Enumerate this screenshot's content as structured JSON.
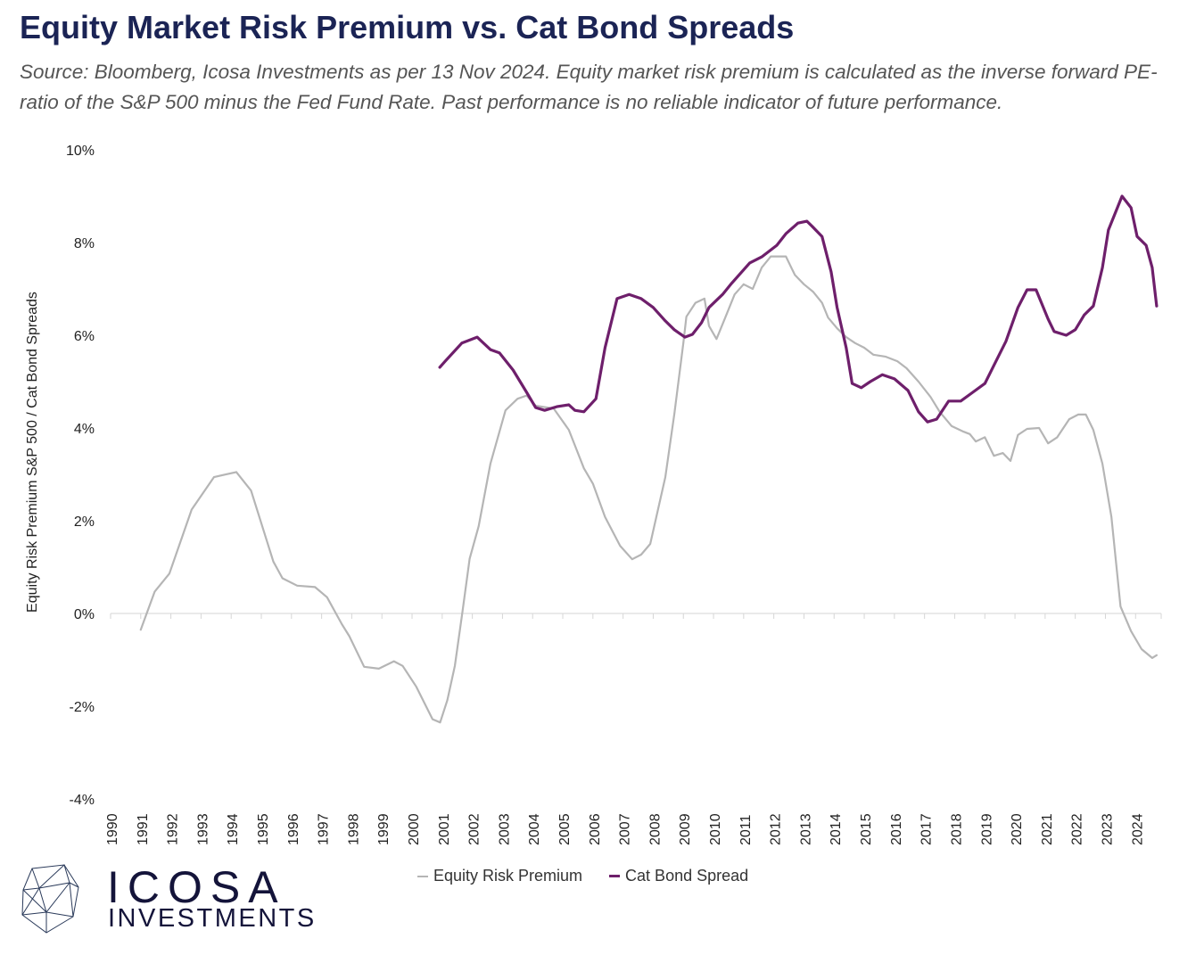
{
  "title": "Equity Market Risk Premium vs. Cat Bond Spreads",
  "subtitle": "Source: Bloomberg, Icosa Investments as per 13 Nov 2024. Equity market risk premium is calculated as the inverse forward PE-ratio of the S&P 500 minus the Fed Fund Rate. Past performance is no reliable indicator of future performance.",
  "logo": {
    "name": "ICOSA",
    "sub": "INVESTMENTS"
  },
  "chart_data": {
    "type": "line",
    "ylabel": "Equity Risk Premium S&P 500 / Cat Bond Spreads",
    "xlabel": "",
    "ylim": [
      -4,
      10
    ],
    "xlim": [
      1990,
      2024.85
    ],
    "yticks": [
      "-4%",
      "-2%",
      "0%",
      "2%",
      "4%",
      "6%",
      "8%",
      "10%"
    ],
    "ytick_values": [
      -4,
      -2,
      0,
      2,
      4,
      6,
      8,
      10
    ],
    "xticks": [
      "1990",
      "1991",
      "1992",
      "1993",
      "1994",
      "1995",
      "1996",
      "1997",
      "1998",
      "1999",
      "2000",
      "2001",
      "2002",
      "2003",
      "2004",
      "2005",
      "2006",
      "2007",
      "2008",
      "2009",
      "2010",
      "2011",
      "2012",
      "2013",
      "2014",
      "2015",
      "2016",
      "2017",
      "2018",
      "2019",
      "2020",
      "2021",
      "2022",
      "2023",
      "2024"
    ],
    "grid": false,
    "legend_position": "bottom",
    "colors": {
      "equity": "#b5b5b5",
      "cat": "#6e1f6b",
      "title": "#1b2455"
    },
    "series": [
      {
        "name": "Equity Risk Premium",
        "points": [
          [
            1991.0,
            -0.35
          ],
          [
            1991.46,
            0.47
          ],
          [
            1991.95,
            0.86
          ],
          [
            1992.69,
            2.24
          ],
          [
            1993.43,
            2.94
          ],
          [
            1994.17,
            3.05
          ],
          [
            1994.66,
            2.65
          ],
          [
            1995.4,
            1.12
          ],
          [
            1995.7,
            0.76
          ],
          [
            1996.19,
            0.6
          ],
          [
            1996.78,
            0.57
          ],
          [
            1997.18,
            0.35
          ],
          [
            1997.67,
            -0.23
          ],
          [
            1997.92,
            -0.49
          ],
          [
            1998.41,
            -1.15
          ],
          [
            1998.9,
            -1.19
          ],
          [
            1999.4,
            -1.03
          ],
          [
            1999.69,
            -1.13
          ],
          [
            2000.14,
            -1.58
          ],
          [
            2000.68,
            -2.28
          ],
          [
            2000.93,
            -2.35
          ],
          [
            2001.17,
            -1.87
          ],
          [
            2001.42,
            -1.13
          ],
          [
            2001.67,
            0.03
          ],
          [
            2001.91,
            1.18
          ],
          [
            2002.21,
            1.88
          ],
          [
            2002.6,
            3.23
          ],
          [
            2003.1,
            4.38
          ],
          [
            2003.5,
            4.63
          ],
          [
            2003.8,
            4.7
          ],
          [
            2004.1,
            4.48
          ],
          [
            2004.7,
            4.42
          ],
          [
            2005.2,
            3.96
          ],
          [
            2005.7,
            3.13
          ],
          [
            2006.0,
            2.8
          ],
          [
            2006.4,
            2.08
          ],
          [
            2006.9,
            1.46
          ],
          [
            2007.3,
            1.17
          ],
          [
            2007.6,
            1.27
          ],
          [
            2007.9,
            1.5
          ],
          [
            2008.4,
            2.94
          ],
          [
            2008.7,
            4.3
          ],
          [
            2009.0,
            5.83
          ],
          [
            2009.1,
            6.4
          ],
          [
            2009.4,
            6.7
          ],
          [
            2009.7,
            6.79
          ],
          [
            2009.85,
            6.2
          ],
          [
            2010.1,
            5.92
          ],
          [
            2010.4,
            6.4
          ],
          [
            2010.7,
            6.88
          ],
          [
            2011.0,
            7.1
          ],
          [
            2011.3,
            7.0
          ],
          [
            2011.6,
            7.46
          ],
          [
            2011.9,
            7.7
          ],
          [
            2012.4,
            7.7
          ],
          [
            2012.7,
            7.3
          ],
          [
            2013.0,
            7.1
          ],
          [
            2013.3,
            6.94
          ],
          [
            2013.6,
            6.7
          ],
          [
            2013.8,
            6.38
          ],
          [
            2014.1,
            6.15
          ],
          [
            2014.4,
            5.96
          ],
          [
            2014.7,
            5.83
          ],
          [
            2015.0,
            5.73
          ],
          [
            2015.3,
            5.58
          ],
          [
            2015.7,
            5.54
          ],
          [
            2016.1,
            5.44
          ],
          [
            2016.4,
            5.29
          ],
          [
            2016.8,
            5.0
          ],
          [
            2017.2,
            4.67
          ],
          [
            2017.5,
            4.35
          ],
          [
            2017.9,
            4.04
          ],
          [
            2018.3,
            3.92
          ],
          [
            2018.5,
            3.87
          ],
          [
            2018.7,
            3.71
          ],
          [
            2019.0,
            3.8
          ],
          [
            2019.3,
            3.4
          ],
          [
            2019.6,
            3.46
          ],
          [
            2019.85,
            3.29
          ],
          [
            2020.1,
            3.85
          ],
          [
            2020.4,
            3.98
          ],
          [
            2020.8,
            4.0
          ],
          [
            2021.1,
            3.67
          ],
          [
            2021.4,
            3.8
          ],
          [
            2021.8,
            4.19
          ],
          [
            2022.1,
            4.29
          ],
          [
            2022.35,
            4.29
          ],
          [
            2022.6,
            3.96
          ],
          [
            2022.9,
            3.23
          ],
          [
            2023.2,
            2.08
          ],
          [
            2023.5,
            0.15
          ],
          [
            2023.85,
            -0.38
          ],
          [
            2024.2,
            -0.77
          ],
          [
            2024.55,
            -0.96
          ],
          [
            2024.7,
            -0.9
          ]
        ]
      },
      {
        "name": "Cat Bond Spread",
        "points": [
          [
            2000.92,
            5.31
          ],
          [
            2001.1,
            5.44
          ],
          [
            2001.65,
            5.83
          ],
          [
            2002.16,
            5.96
          ],
          [
            2002.6,
            5.69
          ],
          [
            2002.9,
            5.62
          ],
          [
            2003.35,
            5.25
          ],
          [
            2003.8,
            4.77
          ],
          [
            2004.1,
            4.44
          ],
          [
            2004.4,
            4.38
          ],
          [
            2004.8,
            4.46
          ],
          [
            2005.2,
            4.5
          ],
          [
            2005.4,
            4.38
          ],
          [
            2005.7,
            4.35
          ],
          [
            2006.1,
            4.63
          ],
          [
            2006.4,
            5.73
          ],
          [
            2006.8,
            6.79
          ],
          [
            2007.2,
            6.88
          ],
          [
            2007.6,
            6.79
          ],
          [
            2008.0,
            6.6
          ],
          [
            2008.4,
            6.31
          ],
          [
            2008.7,
            6.12
          ],
          [
            2009.05,
            5.96
          ],
          [
            2009.3,
            6.02
          ],
          [
            2009.6,
            6.27
          ],
          [
            2009.85,
            6.6
          ],
          [
            2010.3,
            6.88
          ],
          [
            2010.6,
            7.12
          ],
          [
            2011.2,
            7.56
          ],
          [
            2011.6,
            7.69
          ],
          [
            2012.1,
            7.94
          ],
          [
            2012.4,
            8.19
          ],
          [
            2012.8,
            8.42
          ],
          [
            2013.1,
            8.46
          ],
          [
            2013.3,
            8.33
          ],
          [
            2013.6,
            8.13
          ],
          [
            2013.9,
            7.37
          ],
          [
            2014.1,
            6.6
          ],
          [
            2014.4,
            5.73
          ],
          [
            2014.6,
            4.96
          ],
          [
            2014.9,
            4.87
          ],
          [
            2015.2,
            5.0
          ],
          [
            2015.6,
            5.15
          ],
          [
            2016.0,
            5.06
          ],
          [
            2016.45,
            4.81
          ],
          [
            2016.8,
            4.35
          ],
          [
            2017.1,
            4.13
          ],
          [
            2017.4,
            4.19
          ],
          [
            2017.8,
            4.58
          ],
          [
            2018.2,
            4.58
          ],
          [
            2018.6,
            4.77
          ],
          [
            2019.0,
            4.96
          ],
          [
            2019.3,
            5.35
          ],
          [
            2019.7,
            5.87
          ],
          [
            2020.1,
            6.6
          ],
          [
            2020.4,
            6.98
          ],
          [
            2020.7,
            6.98
          ],
          [
            2021.1,
            6.35
          ],
          [
            2021.3,
            6.08
          ],
          [
            2021.7,
            6.0
          ],
          [
            2022.0,
            6.12
          ],
          [
            2022.3,
            6.44
          ],
          [
            2022.6,
            6.63
          ],
          [
            2022.9,
            7.46
          ],
          [
            2023.1,
            8.27
          ],
          [
            2023.55,
            9.0
          ],
          [
            2023.85,
            8.75
          ],
          [
            2024.05,
            8.13
          ],
          [
            2024.35,
            7.94
          ],
          [
            2024.55,
            7.46
          ],
          [
            2024.7,
            6.63
          ]
        ]
      }
    ]
  }
}
